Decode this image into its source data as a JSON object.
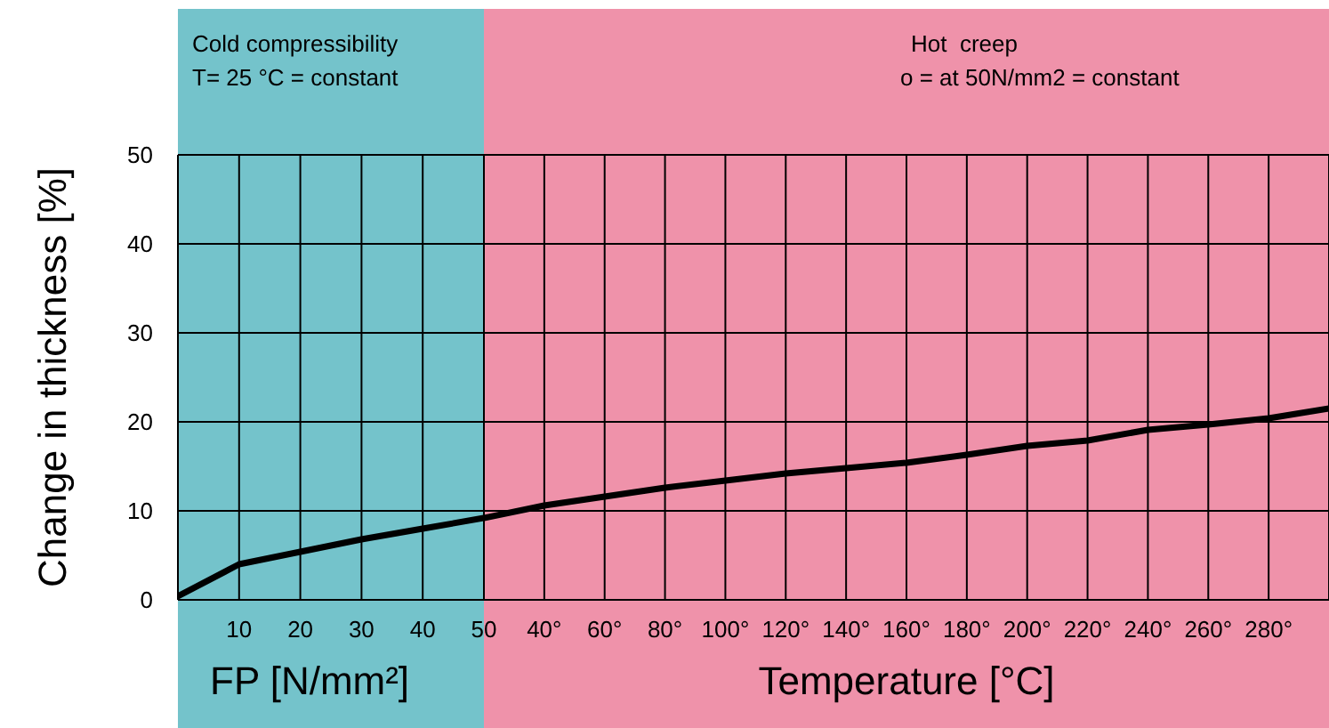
{
  "chart_data": [
    {
      "type": "line",
      "title": "Cold compressibility",
      "subtitle": "T= 25 °C = constant",
      "xlabel": "FP [N/mm²]",
      "ylabel": "Change in thickness [%]",
      "x": [
        0,
        10,
        20,
        30,
        40,
        50
      ],
      "series": [
        {
          "color": "#000000",
          "values": [
            0.4,
            4.0,
            5.4,
            6.8,
            8.0,
            9.2
          ]
        }
      ],
      "xlim": [
        0,
        50
      ],
      "xticks": [
        10,
        20,
        30,
        40,
        50
      ],
      "ylim": [
        0,
        50
      ],
      "yticks": [
        0,
        10,
        20,
        30,
        40,
        50
      ],
      "grid": true,
      "marker": "none",
      "line_style": "solid",
      "bands": [
        {
          "axis": "x",
          "from": 0,
          "to": 50,
          "color": "#74c3cb"
        }
      ]
    },
    {
      "type": "line",
      "title": "Hot  creep",
      "subtitle": "o = at 50N/mm2 = constant",
      "xlabel": "Temperature [°C]",
      "x": [
        20,
        40,
        60,
        80,
        100,
        120,
        140,
        160,
        180,
        200,
        220,
        240,
        260,
        280,
        300
      ],
      "series": [
        {
          "color": "#000000",
          "values": [
            9.2,
            10.6,
            11.6,
            12.6,
            13.4,
            14.2,
            14.8,
            15.4,
            16.3,
            17.3,
            17.9,
            19.1,
            19.7,
            20.4,
            21.5
          ]
        }
      ],
      "xlim": [
        20,
        300
      ],
      "xticks": [
        {
          "value": 40,
          "label": "40°"
        },
        {
          "value": 60,
          "label": "60°"
        },
        {
          "value": 80,
          "label": "80°"
        },
        {
          "value": 100,
          "label": "100°"
        },
        {
          "value": 120,
          "label": "120°"
        },
        {
          "value": 140,
          "label": "140°"
        },
        {
          "value": 160,
          "label": "160°"
        },
        {
          "value": 180,
          "label": "180°"
        },
        {
          "value": 200,
          "label": "200°"
        },
        {
          "value": 220,
          "label": "220°"
        },
        {
          "value": 240,
          "label": "240°"
        },
        {
          "value": 260,
          "label": "260°"
        },
        {
          "value": 280,
          "label": "280°"
        }
      ],
      "ylim": [
        0,
        50
      ],
      "yticks": [
        0,
        10,
        20,
        30,
        40,
        50
      ],
      "tick_labels": "x",
      "grid": true,
      "marker": "none",
      "line_style": "solid",
      "bands": [
        {
          "axis": "x",
          "from": 20,
          "to": 300,
          "color": "#ef92aa"
        }
      ]
    }
  ]
}
